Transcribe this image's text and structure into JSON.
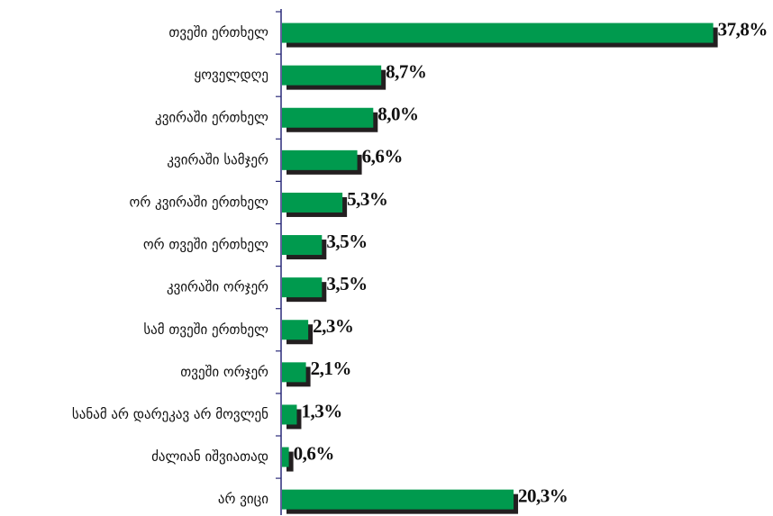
{
  "chart_data": {
    "type": "barh",
    "categories": [
      "თვეში ერთხელ",
      "ყოველდღე",
      "კვირაში ერთხელ",
      "კვირაში სამჯერ",
      "ორ კვირაში ერთხელ",
      "ორ თვეში ერთხელ",
      "კვირაში ორჯერ",
      "სამ თვეში ერთხელ",
      "თვეში ორჯერ",
      "სანამ არ დარეკავ არ მოვლენ",
      "ძალიან იშვიათად",
      "არ ვიცი"
    ],
    "values": [
      37.8,
      8.7,
      8.0,
      6.6,
      5.3,
      3.5,
      3.5,
      2.3,
      2.1,
      1.3,
      0.6,
      20.3
    ],
    "value_labels": [
      "37,8%",
      "8,7%",
      "8,0%",
      "6,6%",
      "5,3%",
      "3,5%",
      "3,5%",
      "2,3%",
      "2,1%",
      "1,3%",
      "0,6%",
      "20,3%"
    ],
    "color": "#009a4e",
    "shadow_color": "#231f20",
    "xlim": [
      0,
      40
    ]
  }
}
